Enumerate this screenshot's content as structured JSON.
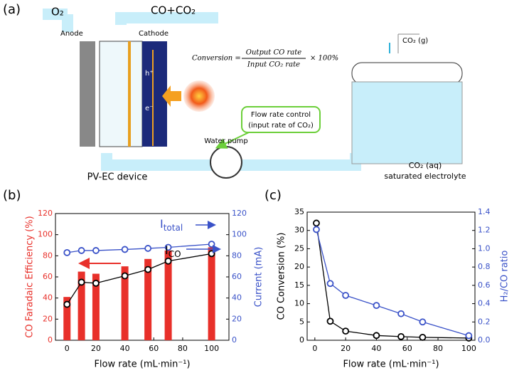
{
  "panel_labels": [
    "(a)",
    "(b)",
    "(c)"
  ],
  "diagram": {
    "outlet_left": "O₂",
    "outlet_right": "CO+CO₂",
    "anode": "Anode",
    "cathode": "Cathode",
    "formula": {
      "lhs": "Conversion =",
      "numerator": "Output CO rate",
      "denominator": "Input CO₂ rate",
      "factor": "× 100%"
    },
    "hole": "h⁺",
    "electron": "e⁻",
    "gas_inlet": "CO₂ (g)",
    "flow_control": [
      "Flow rate control",
      "(input rate of CO₂)"
    ],
    "pump": "Water pump",
    "device": "PV-EC device",
    "tank": [
      "CO₂ (aq)",
      "saturated electrolyte"
    ]
  },
  "chart_data": [
    {
      "type": "combo",
      "xlabel": "Flow rate (mL·min⁻¹)",
      "ylabel": "CO Faradaic Efficiency (%)",
      "y2label": "Current (mA)",
      "ylabel_color": "#e8302a",
      "y2_color": "#3a52c8",
      "x": [
        0,
        10,
        20,
        40,
        56,
        70,
        100
      ],
      "xlim": [
        -8,
        112
      ],
      "xticks": [
        0,
        20,
        40,
        60,
        80,
        100
      ],
      "ylim": [
        0,
        120
      ],
      "yticks": [
        0,
        20,
        40,
        60,
        80,
        100,
        120
      ],
      "y2lim": [
        0,
        120
      ],
      "y2ticks": [
        0,
        20,
        40,
        60,
        80,
        100,
        120
      ],
      "series": [
        {
          "kind": "bar",
          "color": "#e8302a",
          "values": [
            41,
            65,
            63,
            70,
            77,
            85,
            88
          ]
        },
        {
          "kind": "line",
          "axis": "y2",
          "color": "#3a52c8",
          "values": [
            83,
            85,
            85,
            86,
            87,
            88,
            91
          ]
        },
        {
          "kind": "line",
          "axis": "y2",
          "color": "#000000",
          "values": [
            34,
            55,
            54,
            61,
            67,
            75,
            82
          ]
        }
      ],
      "annotations": [
        {
          "text": "I",
          "sub": "total"
        },
        {
          "text": "I",
          "sub": "CO"
        }
      ]
    },
    {
      "type": "combo",
      "xlabel": "Flow rate (mL·min⁻¹)",
      "ylabel": "CO Conversion (%)",
      "y2label": "H₂/CO ratio",
      "ylabel_color": "#000000",
      "y2_color": "#3a52c8",
      "x": [
        1,
        10,
        20,
        40,
        56,
        70,
        100
      ],
      "xlim": [
        -5,
        104
      ],
      "xticks": [
        0,
        20,
        40,
        60,
        80,
        100
      ],
      "ylim": [
        0,
        35
      ],
      "yticks": [
        0,
        5,
        10,
        15,
        20,
        25,
        30,
        35
      ],
      "y2lim": [
        0,
        1.4
      ],
      "y2ticks": [
        {
          "value": 0,
          "label": "0.0"
        },
        0.2,
        0.4,
        0.6,
        0.8,
        {
          "value": 1,
          "label": "1.0"
        },
        1.2,
        1.4
      ],
      "series": [
        {
          "kind": "line",
          "color": "#000000",
          "values": [
            32,
            5.2,
            2.5,
            1.3,
            1.0,
            0.8,
            0.6
          ]
        },
        {
          "kind": "line",
          "axis": "y2",
          "color": "#3a52c8",
          "values": [
            1.21,
            0.62,
            0.49,
            0.38,
            0.29,
            0.2,
            0.05
          ]
        }
      ],
      "annotations": []
    }
  ]
}
